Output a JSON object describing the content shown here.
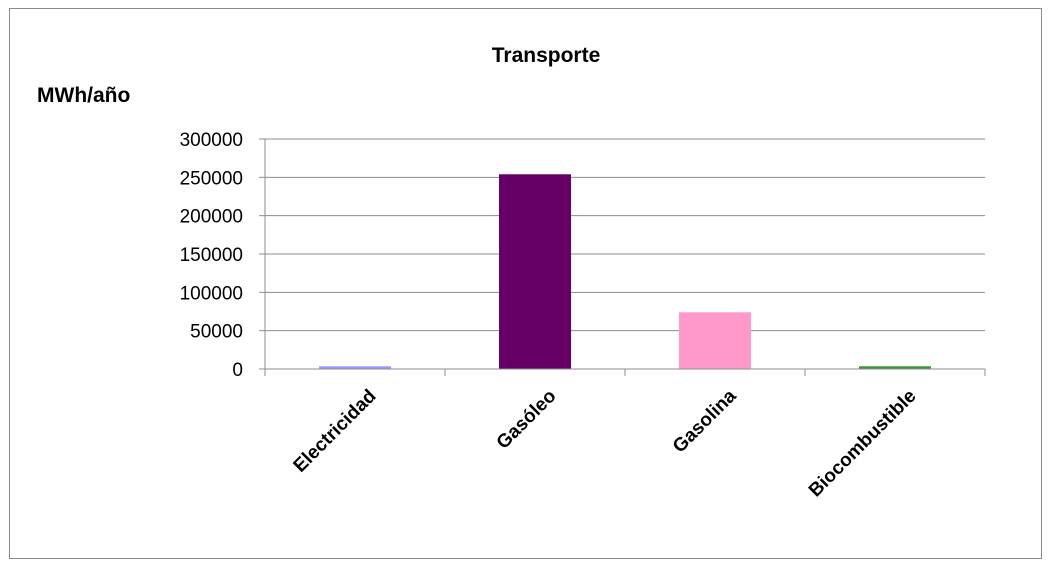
{
  "chart_data": {
    "type": "bar",
    "title": "Transporte",
    "ylabel": "MWh/año",
    "xlabel": "",
    "categories": [
      "Electricidad",
      "Gasóleo",
      "Gasolina",
      "Biocombustible"
    ],
    "values": [
      3500,
      254000,
      74000,
      3500
    ],
    "colors": [
      "#9999ff",
      "#660066",
      "#ff99cc",
      "#339933"
    ],
    "ylim": [
      0,
      300000
    ],
    "yticks": [
      0,
      50000,
      100000,
      150000,
      200000,
      250000,
      300000
    ],
    "grid": true,
    "legend": "none"
  }
}
